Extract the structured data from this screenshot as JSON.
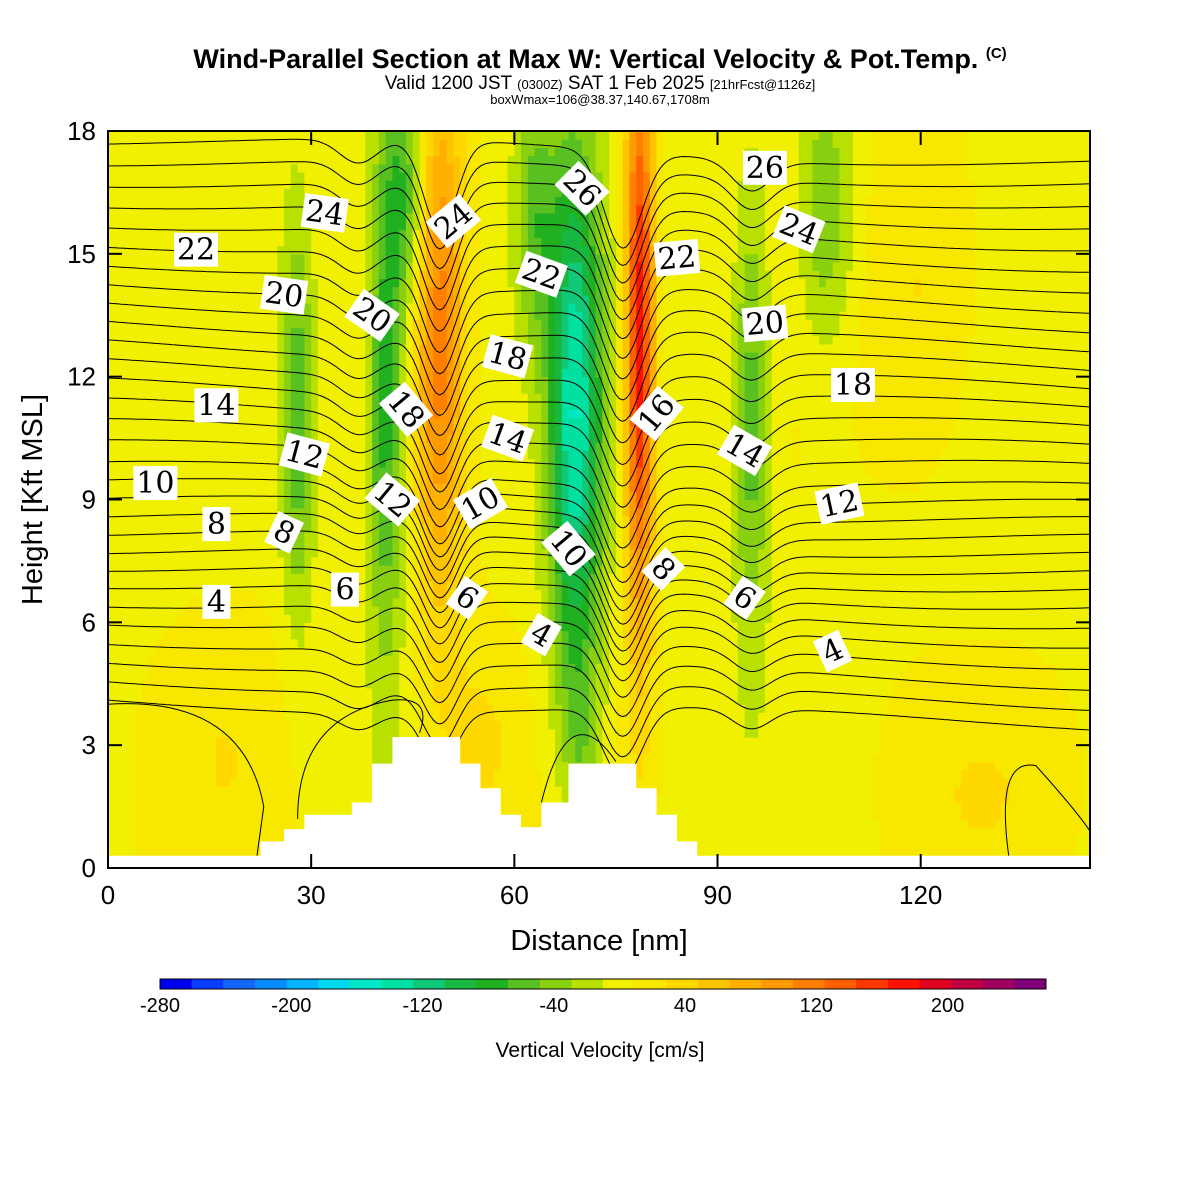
{
  "title": "Wind-Parallel Section at Max W: Vertical Velocity & Pot.Temp.",
  "title_mark": "(C)",
  "subtitle_pre": "Valid 1200 JST",
  "subtitle_utc": "(0300Z)",
  "subtitle_mid": "SAT 1 Feb 2025",
  "subtitle_fcst": "[21hrFcst@1126z]",
  "subtitle2": "boxWmax=106@38.37,140.67,1708m",
  "chart_data": {
    "type": "heatmap",
    "xlabel": "Distance [nm]",
    "ylabel": "Height [Kft MSL]",
    "xlim": [
      0,
      145
    ],
    "ylim": [
      0,
      18
    ],
    "x_ticks": [
      0,
      30,
      60,
      90,
      120
    ],
    "y_ticks": [
      0,
      3,
      6,
      9,
      12,
      15,
      18
    ],
    "colorbar": {
      "label": "Vertical Velocity [cm/s]",
      "min": -280,
      "max": 260,
      "step": 20,
      "tick_values": [
        -280,
        -200,
        -120,
        -40,
        40,
        120,
        200
      ],
      "tick_labels": [
        "-280",
        "-200",
        "-120",
        "-40",
        "40",
        "120",
        "200"
      ],
      "colors": [
        "#0000f0",
        "#0a3cff",
        "#1466ff",
        "#0a8cff",
        "#00b4ff",
        "#00d8f0",
        "#00e8c8",
        "#00e0a0",
        "#10c878",
        "#18b840",
        "#20b020",
        "#58c020",
        "#88d010",
        "#b8e000",
        "#f0f000",
        "#f8e800",
        "#ffd800",
        "#ffc400",
        "#ffb000",
        "#ff9a00",
        "#ff8000",
        "#ff6000",
        "#ff3800",
        "#ff1000",
        "#e00020",
        "#c00040",
        "#a00060",
        "#800078"
      ]
    },
    "wmax_cm_s": 106,
    "terrain_kft": [
      [
        0,
        0.3
      ],
      [
        22.5,
        0.3
      ],
      [
        22.5,
        0.65
      ],
      [
        26,
        0.65
      ],
      [
        26,
        0.95
      ],
      [
        29,
        0.95
      ],
      [
        29,
        1.3
      ],
      [
        36,
        1.3
      ],
      [
        36,
        1.6
      ],
      [
        39,
        1.6
      ],
      [
        39,
        2.55
      ],
      [
        42,
        2.55
      ],
      [
        42,
        3.2
      ],
      [
        52,
        3.2
      ],
      [
        52,
        2.55
      ],
      [
        55,
        2.55
      ],
      [
        55,
        1.95
      ],
      [
        58,
        1.95
      ],
      [
        58,
        1.3
      ],
      [
        61,
        1.3
      ],
      [
        61,
        1.0
      ],
      [
        64,
        1.0
      ],
      [
        64,
        1.6
      ],
      [
        68,
        1.6
      ],
      [
        68,
        2.55
      ],
      [
        78,
        2.55
      ],
      [
        78,
        1.95
      ],
      [
        81,
        1.95
      ],
      [
        81,
        1.3
      ],
      [
        84,
        1.3
      ],
      [
        84,
        0.65
      ],
      [
        87,
        0.65
      ],
      [
        87,
        0.3
      ],
      [
        145,
        0.3
      ]
    ],
    "w_cells": [
      {
        "x": 28,
        "y": 11,
        "sx": 1.8,
        "sy": 3.5,
        "w": -70
      },
      {
        "x": 41,
        "y": 11.5,
        "sx": 2.0,
        "sy": 4.5,
        "w": -90
      },
      {
        "x": 44,
        "y": 16.5,
        "sx": 2.2,
        "sy": 2.0,
        "w": -70
      },
      {
        "x": 49,
        "y": 13,
        "sx": 2.5,
        "sy": 4.8,
        "w": 110
      },
      {
        "x": 63,
        "y": 16,
        "sx": 2.2,
        "sy": 2.2,
        "w": -60
      },
      {
        "x": 69,
        "y": 11,
        "sx": 2.8,
        "sy": 4.8,
        "w": -150
      },
      {
        "x": 78.5,
        "y": 13,
        "sx": 1.5,
        "sy": 5.2,
        "w": 180
      },
      {
        "x": 95,
        "y": 11,
        "sx": 2.0,
        "sy": 4.0,
        "w": -70
      },
      {
        "x": 106,
        "y": 16,
        "sx": 3.0,
        "sy": 2.4,
        "w": -55
      },
      {
        "x": 55,
        "y": 3.0,
        "sx": 4.5,
        "sy": 2.0,
        "w": 30
      },
      {
        "x": 18,
        "y": 3.0,
        "sx": 7.0,
        "sy": 2.5,
        "w": 20
      },
      {
        "x": 130,
        "y": 2.0,
        "sx": 10.0,
        "sy": 2.0,
        "w": 20
      },
      {
        "x": 70,
        "y": 3.0,
        "sx": 2.0,
        "sy": 1.5,
        "w": -30
      },
      {
        "x": 120,
        "y": 14,
        "sx": 6.0,
        "sy": 3.0,
        "w": 30
      }
    ],
    "theta_base_kft": [
      4.1,
      4.6,
      5.1,
      5.6,
      6.1,
      6.55,
      7.0,
      7.4,
      7.8,
      8.2,
      8.6,
      9.0,
      9.4,
      9.8,
      10.3,
      10.8,
      11.3,
      11.8,
      12.3,
      12.8,
      13.3,
      13.8,
      14.3,
      14.8,
      15.3,
      15.8,
      16.3,
      16.8,
      17.3,
      17.8
    ],
    "theta_labels": [
      {
        "x": 16,
        "y": 6.5,
        "text": "4",
        "rot": 0
      },
      {
        "x": 35,
        "y": 6.8,
        "text": "6",
        "rot": 0
      },
      {
        "x": 16,
        "y": 8.4,
        "text": "8",
        "rot": 0
      },
      {
        "x": 26,
        "y": 8.2,
        "text": "8",
        "rot": 25
      },
      {
        "x": 7,
        "y": 9.4,
        "text": "10",
        "rot": 0
      },
      {
        "x": 29,
        "y": 10.1,
        "text": "12",
        "rot": 15
      },
      {
        "x": 16,
        "y": 11.3,
        "text": "14",
        "rot": 0
      },
      {
        "x": 26,
        "y": 14.0,
        "text": "20",
        "rot": 8
      },
      {
        "x": 13,
        "y": 15.1,
        "text": "22",
        "rot": 0
      },
      {
        "x": 32,
        "y": 16.0,
        "text": "24",
        "rot": 8
      },
      {
        "x": 39,
        "y": 13.5,
        "text": "20",
        "rot": 35
      },
      {
        "x": 44,
        "y": 11.2,
        "text": "18",
        "rot": 50
      },
      {
        "x": 42,
        "y": 9.0,
        "text": "12",
        "rot": 40
      },
      {
        "x": 53,
        "y": 6.6,
        "text": "6",
        "rot": 35
      },
      {
        "x": 55,
        "y": 8.9,
        "text": "10",
        "rot": -30
      },
      {
        "x": 51,
        "y": 15.8,
        "text": "24",
        "rot": -40
      },
      {
        "x": 59,
        "y": 12.5,
        "text": "18",
        "rot": 15
      },
      {
        "x": 59,
        "y": 10.5,
        "text": "14",
        "rot": 20
      },
      {
        "x": 64,
        "y": 14.5,
        "text": "22",
        "rot": 20
      },
      {
        "x": 70,
        "y": 16.6,
        "text": "26",
        "rot": 45
      },
      {
        "x": 64,
        "y": 5.7,
        "text": "4",
        "rot": 30
      },
      {
        "x": 68,
        "y": 7.8,
        "text": "10",
        "rot": 50
      },
      {
        "x": 84,
        "y": 14.9,
        "text": "22",
        "rot": -5
      },
      {
        "x": 81,
        "y": 11.1,
        "text": "16",
        "rot": -50
      },
      {
        "x": 82,
        "y": 7.3,
        "text": "8",
        "rot": 45
      },
      {
        "x": 94,
        "y": 6.6,
        "text": "6",
        "rot": 35
      },
      {
        "x": 94,
        "y": 10.2,
        "text": "14",
        "rot": 30
      },
      {
        "x": 97,
        "y": 13.3,
        "text": "20",
        "rot": -5
      },
      {
        "x": 102,
        "y": 15.6,
        "text": "24",
        "rot": 22
      },
      {
        "x": 97,
        "y": 17.1,
        "text": "26",
        "rot": 0
      },
      {
        "x": 110,
        "y": 11.8,
        "text": "18",
        "rot": 0
      },
      {
        "x": 108,
        "y": 8.9,
        "text": "12",
        "rot": -12
      },
      {
        "x": 107,
        "y": 5.3,
        "text": "4",
        "rot": -25
      }
    ]
  }
}
